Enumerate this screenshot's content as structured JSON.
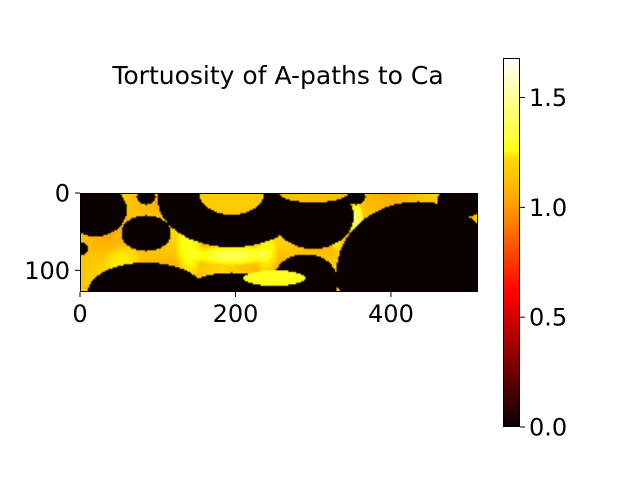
{
  "chart_data": {
    "type": "heatmap",
    "title": "Tortuosity of A-paths to Ca",
    "colormap": "hot",
    "extent": {
      "x": [
        0,
        512
      ],
      "y": [
        0,
        128
      ]
    },
    "x_ticks": [
      0,
      200,
      400
    ],
    "y_ticks": [
      0,
      100
    ],
    "colorbar": {
      "range": [
        0,
        1.68
      ],
      "ticks": [
        "0.0",
        "0.5",
        "1.0",
        "1.5"
      ],
      "tick_values": [
        0,
        0.5,
        1.0,
        1.5
      ]
    },
    "background_value": 1.1,
    "obstacles": [
      {
        "shape": "ellipse",
        "cx": 20,
        "cy": 22,
        "rx": 40,
        "ry": 34
      },
      {
        "shape": "ellipse",
        "cx": 85,
        "cy": 52,
        "rx": 32,
        "ry": 23
      },
      {
        "shape": "ellipse",
        "cx": 0,
        "cy": 72,
        "rx": 10,
        "ry": 9
      },
      {
        "shape": "ellipse",
        "cx": 85,
        "cy": 5,
        "rx": 12,
        "ry": 10
      },
      {
        "shape": "ellipse",
        "cx": 195,
        "cy": 8,
        "rx": 95,
        "ry": 62
      },
      {
        "shape": "ellipse",
        "cx": 300,
        "cy": 30,
        "rx": 52,
        "ry": 42
      },
      {
        "shape": "ellipse",
        "cx": 355,
        "cy": 5,
        "rx": 12,
        "ry": 10
      },
      {
        "shape": "ellipse",
        "cx": 435,
        "cy": 103,
        "rx": 105,
        "ry": 92
      },
      {
        "shape": "ellipse",
        "cx": 490,
        "cy": 10,
        "rx": 30,
        "ry": 22
      },
      {
        "shape": "ellipse",
        "cx": 85,
        "cy": 128,
        "rx": 75,
        "ry": 38
      },
      {
        "shape": "ellipse",
        "cx": 195,
        "cy": 128,
        "rx": 60,
        "ry": 25
      },
      {
        "shape": "ellipse",
        "cx": 290,
        "cy": 115,
        "rx": 42,
        "ry": 36
      }
    ],
    "holes": [
      {
        "shape": "ellipse",
        "cx": 195,
        "cy": 0,
        "rx": 42,
        "ry": 28,
        "value": 1.12
      },
      {
        "shape": "ellipse",
        "cx": 300,
        "cy": 0,
        "rx": 44,
        "ry": 12,
        "value": 1.1
      },
      {
        "shape": "ellipse",
        "cx": 250,
        "cy": 110,
        "rx": 40,
        "ry": 10,
        "value": 1.3
      }
    ],
    "highlights": [
      {
        "cx": 195,
        "cy": 80,
        "rx": 55,
        "ry": 14,
        "value": 1.4
      },
      {
        "cx": 55,
        "cy": 85,
        "rx": 25,
        "ry": 20,
        "value": 1.2
      },
      {
        "cx": 140,
        "cy": 70,
        "rx": 18,
        "ry": 40,
        "value": 1.3
      },
      {
        "cx": 330,
        "cy": 45,
        "rx": 10,
        "ry": 35,
        "value": 1.35
      },
      {
        "cx": 355,
        "cy": 35,
        "rx": 10,
        "ry": 25,
        "value": 1.45
      },
      {
        "cx": 240,
        "cy": 80,
        "rx": 15,
        "ry": 30,
        "value": 1.25
      },
      {
        "cx": 455,
        "cy": 40,
        "rx": 15,
        "ry": 20,
        "value": 1.2
      }
    ]
  }
}
